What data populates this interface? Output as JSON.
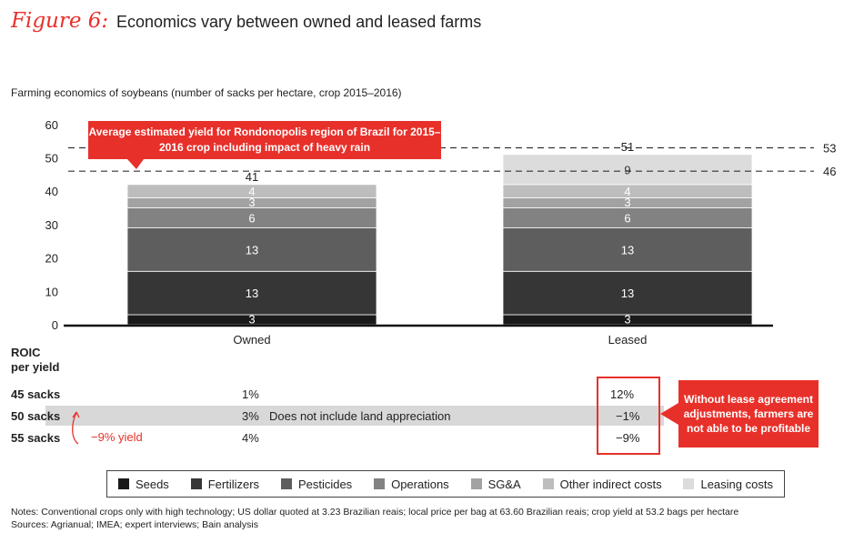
{
  "figure": {
    "label": "Figure 6:",
    "title": "Economics vary between owned and leased farms",
    "subtitle": "Farming economics of soybeans (number of sacks per hectare, crop 2015–2016)"
  },
  "chart_data": {
    "type": "bar",
    "stacked": true,
    "categories": [
      "Owned",
      "Leased"
    ],
    "series": [
      {
        "name": "Seeds",
        "values": [
          3,
          3
        ],
        "color": "#1a1a1a"
      },
      {
        "name": "Fertilizers",
        "values": [
          13,
          13
        ],
        "color": "#363636"
      },
      {
        "name": "Pesticides",
        "values": [
          13,
          13
        ],
        "color": "#5e5e5e"
      },
      {
        "name": "Operations",
        "values": [
          6,
          6
        ],
        "color": "#828282"
      },
      {
        "name": "SG&A",
        "values": [
          3,
          3
        ],
        "color": "#a2a2a2"
      },
      {
        "name": "Other indirect costs",
        "values": [
          4,
          4
        ],
        "color": "#bdbdbd"
      },
      {
        "name": "Leasing costs",
        "values": [
          0,
          9
        ],
        "color": "#dcdcdc"
      }
    ],
    "totals": [
      "41",
      "51"
    ],
    "ylim": [
      0,
      60
    ],
    "yticks": [
      "0",
      "10",
      "20",
      "30",
      "40",
      "50",
      "60"
    ],
    "reference_lines": [
      {
        "value": 53,
        "label": "53"
      },
      {
        "value": 46,
        "label": "46"
      }
    ],
    "annotation": "Average estimated yield for Rondonopolis region of Brazil for 2015–2016 crop including impact of heavy rain"
  },
  "roic": {
    "header": [
      "ROIC",
      "per yield"
    ],
    "rows": [
      {
        "label": "45 sacks",
        "owned": "1%",
        "leased": "12%"
      },
      {
        "label": "50 sacks",
        "owned": "3%",
        "leased": "−1%"
      },
      {
        "label": "55 sacks",
        "owned": "4%",
        "leased": "−9%"
      }
    ],
    "land_note": "Does not include land appreciation",
    "yield_note": "−9% yield",
    "callout": "Without lease agreement adjustments, farmers are not able to be profitable"
  },
  "notes": {
    "line1": "Notes: Conventional crops only with high technology; US dollar quoted at 3.23 Brazilian reais; local price per bag at 63.60 Brazilian reais; crop yield at 53.2 bags per hectare",
    "line2": "Sources: Agrianual; IMEA; expert interviews; Bain analysis"
  }
}
